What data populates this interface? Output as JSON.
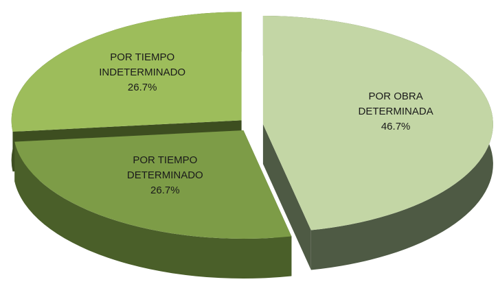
{
  "chart_data": {
    "type": "pie",
    "categories": [
      "POR OBRA DETERMINADA",
      "POR TIEMPO DETERMINADO",
      "POR TIEMPO INDETERMINADO"
    ],
    "values": [
      46.7,
      26.7,
      26.7
    ],
    "value_labels": [
      "46.7%",
      "26.7%",
      "26.7%"
    ],
    "colors": [
      "#c3d6a5",
      "#7d9c47",
      "#9dbd5b"
    ],
    "side_colors": [
      "#4e5a44",
      "#4a5f29",
      "#3d4e20"
    ]
  }
}
